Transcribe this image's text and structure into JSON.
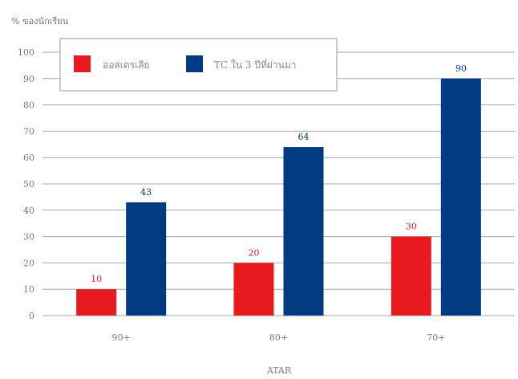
{
  "chart_data": {
    "type": "bar",
    "ylabel": "% ของนักเรียน",
    "xlabel": "ATAR",
    "categories": [
      "90+",
      "80+",
      "70+"
    ],
    "ylim": [
      0,
      100
    ],
    "yticks": [
      0,
      10,
      20,
      30,
      40,
      50,
      60,
      70,
      80,
      90,
      100
    ],
    "grid": true,
    "legend_position": "top-left",
    "series": [
      {
        "name": "ออสเตรเลีย",
        "values": [
          10,
          20,
          30
        ],
        "color": "#e8191f"
      },
      {
        "name": "TC ใน 3 ปีที่ผ่านมา",
        "values": [
          43,
          64,
          90
        ],
        "color": "#003a80"
      }
    ]
  }
}
